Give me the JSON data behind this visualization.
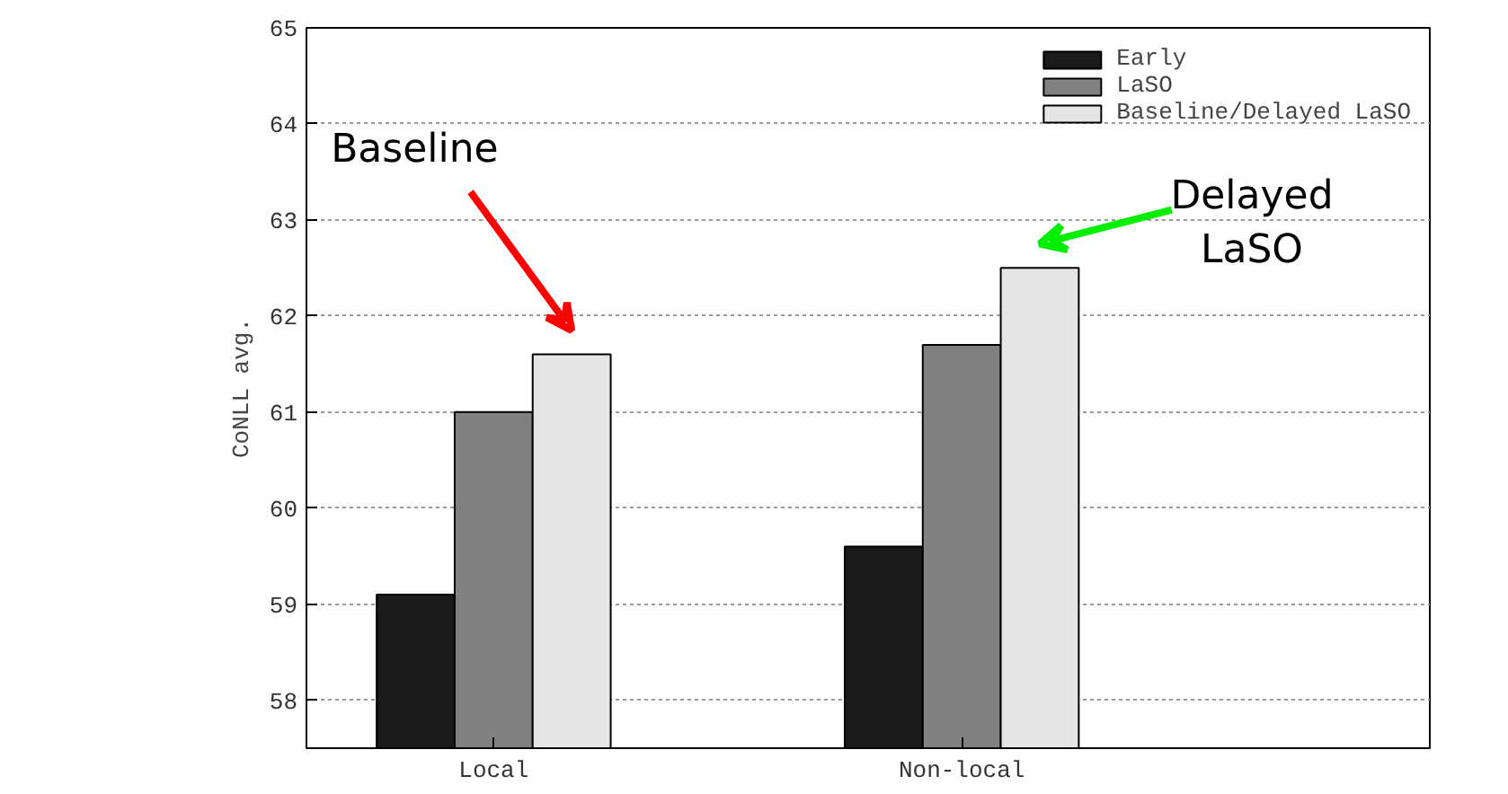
{
  "chart_data": {
    "type": "bar",
    "ylabel": "CoNLL avg.",
    "categories": [
      "Local",
      "Non-local"
    ],
    "series": [
      {
        "name": "Early",
        "color": "#1a1a1a",
        "values": [
          59.1,
          59.6
        ]
      },
      {
        "name": "LaSO",
        "color": "#808080",
        "values": [
          61.0,
          61.7
        ]
      },
      {
        "name": "Baseline/Delayed LaSO",
        "color": "#e5e5e5",
        "values": [
          61.6,
          62.5
        ]
      }
    ],
    "ylim": [
      57.5,
      65
    ],
    "yticks": [
      58,
      59,
      60,
      61,
      62,
      63,
      64,
      65
    ],
    "grid": "y",
    "legend": "top right",
    "annotations": [
      "Baseline",
      "Delayed\nLaSO"
    ]
  }
}
